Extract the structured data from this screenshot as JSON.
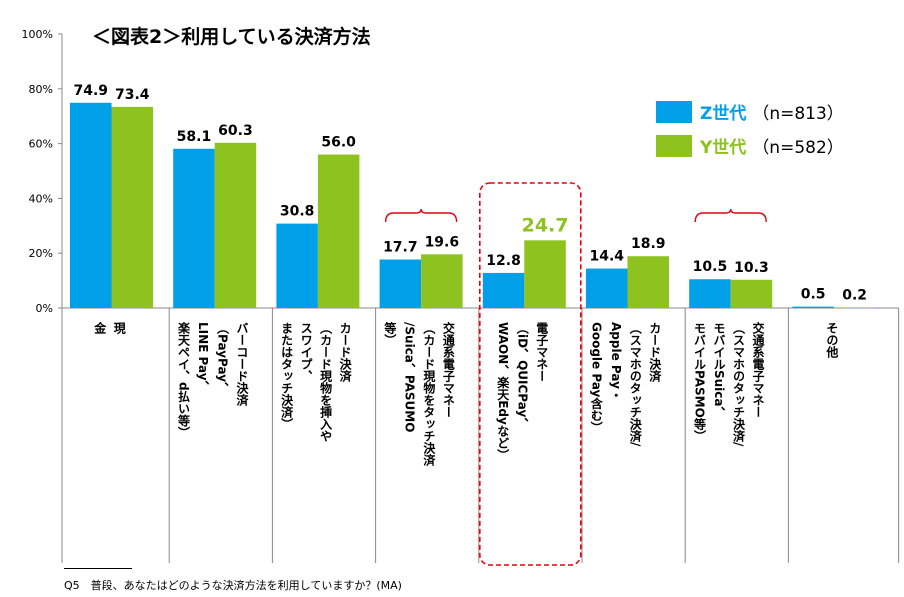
{
  "title": "＜図表2＞利用している決済方法",
  "legend": [
    {
      "name": "Z世代",
      "count": "（n=813）",
      "color": "#00a0e9"
    },
    {
      "name": "Y世代",
      "count": "（n=582）",
      "color": "#8dc21f"
    }
  ],
  "footnote": "Q5　普段、あなたはどのような決済方法を利用していますか？(MA)",
  "chart_data": {
    "type": "bar",
    "categories": [
      [
        "現",
        "金"
      ],
      [
        "バーコード決済",
        "（PayPay、",
        "LINE Pay、",
        "楽天ペイ、d払い等）"
      ],
      [
        "カード決済",
        "（カード現物を挿入や",
        "スワイプ、",
        "またはタッチ決済）"
      ],
      [
        "交通系電子マネー",
        "（カード現物をタッチ決済",
        "/Suica、PASUMO",
        "等）"
      ],
      [
        "電子マネー",
        "（iD、QUICPay、",
        "WAON、楽天Edyなど）"
      ],
      [
        "カード決済",
        "（スマホのタッチ決済/",
        "Apple Pay・",
        "Google Pay含む）"
      ],
      [
        "交通系電子マネー",
        "（スマホのタッチ決済/",
        "モバイルSuica、",
        "モバイルPASMO等）"
      ],
      [
        "その他"
      ]
    ],
    "series": [
      {
        "name": "Z世代",
        "color": "#00a0e9",
        "values": [
          74.9,
          58.1,
          30.8,
          17.7,
          12.8,
          14.4,
          10.5,
          0.5
        ]
      },
      {
        "name": "Y世代",
        "color": "#8dc21f",
        "values": [
          73.4,
          60.3,
          56.0,
          19.6,
          24.7,
          18.9,
          10.3,
          0.2
        ]
      }
    ],
    "value_labels": {
      "Z世代": [
        "74.9",
        "58.1",
        "30.8",
        "17.7",
        "12.8",
        "14.4",
        "10.5",
        "0.5"
      ],
      "Y世代": [
        "73.4",
        "60.3",
        "56.0",
        "19.6",
        "24.7",
        "18.9",
        "10.3",
        "0.2"
      ]
    },
    "yticks": [
      "0%",
      "20%",
      "40%",
      "60%",
      "80%",
      "100%"
    ],
    "ylim": [
      0,
      100
    ],
    "highlight_category_index": 4,
    "highlight_color": "#e60012",
    "brace_category_indices": [
      3,
      6
    ],
    "legend_position": "top-right",
    "grid": false
  }
}
